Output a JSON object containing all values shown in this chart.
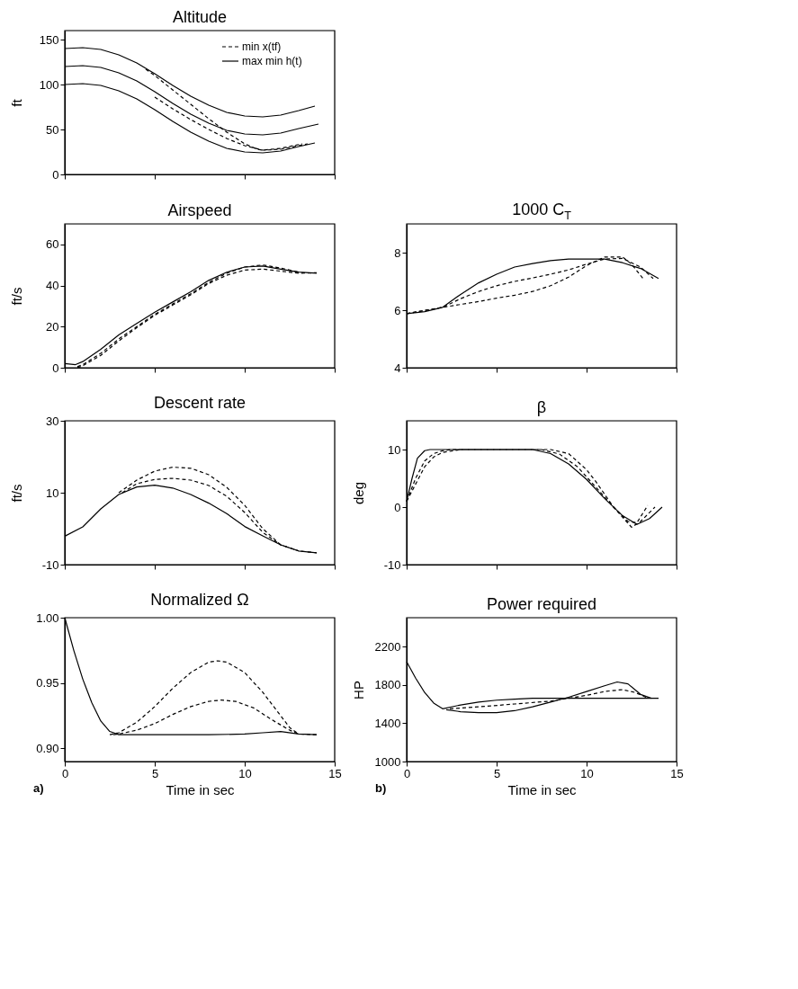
{
  "chart_data": [
    {
      "type": "line",
      "title": "Altitude",
      "ylabel": "ft",
      "xlim": [
        0,
        15
      ],
      "xticks": [
        0,
        5,
        10,
        15
      ],
      "ylim": [
        0,
        160
      ],
      "yticks": [
        0,
        50,
        100,
        150
      ],
      "tick_labels": "y",
      "legend": "top right",
      "series": [
        {
          "name": "min x(tf)",
          "color": "#000000",
          "line_style": "dashed",
          "x": [
            4.5,
            5,
            6,
            7,
            8,
            9,
            10,
            10.7,
            11,
            12,
            13.2
          ],
          "values": [
            117,
            110,
            94,
            78,
            62,
            47,
            34,
            28,
            27,
            29,
            34
          ]
        },
        {
          "color": "#000000",
          "line_style": "dashed",
          "x": [
            5,
            6,
            7,
            8,
            9,
            10,
            11,
            12,
            13,
            13.5
          ],
          "values": [
            86,
            73,
            61,
            50,
            40,
            32,
            27,
            28,
            32,
            34
          ]
        },
        {
          "name": "max min h(t)",
          "color": "#000000",
          "line_style": "solid",
          "x": [
            0,
            1,
            2,
            3,
            4,
            5,
            6,
            7,
            8,
            9,
            10,
            11,
            12,
            13,
            13.9
          ],
          "values": [
            140,
            141,
            139,
            133,
            124,
            112,
            99,
            87,
            77,
            69,
            65,
            64,
            66,
            71,
            76
          ]
        },
        {
          "color": "#000000",
          "line_style": "solid",
          "x": [
            0,
            1,
            2,
            3,
            4,
            5,
            6,
            7,
            8,
            9,
            10,
            11,
            12,
            13,
            14.1
          ],
          "values": [
            120,
            121,
            119,
            113,
            104,
            92,
            79,
            67,
            57,
            49,
            45,
            44,
            46,
            51,
            56
          ]
        },
        {
          "color": "#000000",
          "line_style": "solid",
          "x": [
            0,
            1,
            2,
            3,
            4,
            5,
            6,
            7,
            8,
            9,
            10,
            11,
            12,
            13,
            13.9
          ],
          "values": [
            100,
            101,
            99,
            93,
            84,
            72,
            59,
            47,
            37,
            29,
            25,
            24,
            26,
            31,
            35
          ]
        }
      ]
    },
    {
      "type": "line",
      "title": "Airspeed",
      "ylabel": "ft/s",
      "xlim": [
        0,
        15
      ],
      "xticks": [
        0,
        5,
        10,
        15
      ],
      "ylim": [
        0,
        70
      ],
      "yticks": [
        0,
        20,
        40,
        60
      ],
      "tick_labels": "y",
      "series": [
        {
          "color": "#000000",
          "line_style": "solid",
          "x": [
            0,
            0.6,
            1,
            2,
            3,
            4,
            5,
            6,
            7,
            8,
            9,
            10,
            11,
            12,
            13,
            14
          ],
          "values": [
            2,
            1.5,
            3,
            9,
            16,
            21.5,
            27,
            32,
            37,
            42.5,
            46.5,
            49,
            49.5,
            48,
            46.5,
            46
          ]
        },
        {
          "color": "#000000",
          "line_style": "dashed",
          "x": [
            0.7,
            1,
            2,
            3,
            4,
            5,
            6,
            7,
            8,
            9,
            10,
            11,
            12,
            13
          ],
          "values": [
            0.5,
            1.5,
            7,
            14,
            20,
            26,
            31,
            36,
            41.5,
            46,
            49,
            50,
            48.5,
            46.5
          ]
        },
        {
          "color": "#000000",
          "line_style": "dashed",
          "x": [
            0.7,
            1,
            2,
            3,
            4,
            5,
            6,
            7,
            8,
            9,
            10,
            11,
            12,
            13,
            14
          ],
          "values": [
            0,
            1,
            6,
            13,
            19.5,
            25.5,
            30.5,
            35.5,
            41,
            45,
            47.5,
            48,
            47,
            46,
            46.2
          ]
        }
      ]
    },
    {
      "type": "line",
      "title": "1000 C$_{T}$",
      "xlim": [
        0,
        15
      ],
      "xticks": [
        0,
        5,
        10,
        15
      ],
      "ylim": [
        4,
        9
      ],
      "yticks": [
        4,
        6,
        8
      ],
      "tick_labels": "y",
      "series": [
        {
          "color": "#000000",
          "line_style": "solid",
          "x": [
            0,
            1,
            2,
            3,
            4,
            5,
            6,
            7,
            8,
            9,
            10,
            11,
            12,
            13,
            14
          ],
          "values": [
            5.88,
            5.95,
            6.1,
            6.55,
            6.95,
            7.25,
            7.5,
            7.62,
            7.72,
            7.78,
            7.78,
            7.78,
            7.65,
            7.45,
            7.1
          ]
        },
        {
          "color": "#000000",
          "line_style": "dashed",
          "x": [
            0,
            2,
            3,
            4,
            5,
            6,
            7,
            8,
            9,
            10,
            11,
            12,
            13,
            13.7
          ],
          "values": [
            5.88,
            6.1,
            6.4,
            6.65,
            6.85,
            7.0,
            7.12,
            7.25,
            7.4,
            7.6,
            7.78,
            7.8,
            7.5,
            7.1
          ]
        },
        {
          "color": "#000000",
          "line_style": "dashed",
          "x": [
            0,
            2,
            3,
            4,
            5,
            6,
            7,
            8,
            9,
            10,
            11,
            12,
            12.5,
            13.2
          ],
          "values": [
            5.88,
            6.1,
            6.2,
            6.3,
            6.42,
            6.52,
            6.65,
            6.85,
            7.15,
            7.55,
            7.85,
            7.85,
            7.6,
            7.05
          ]
        }
      ]
    },
    {
      "type": "line",
      "title": "Descent rate",
      "ylabel": "ft/s",
      "xlim": [
        0,
        15
      ],
      "xticks": [
        0,
        5,
        10,
        15
      ],
      "ylim": [
        -10,
        30
      ],
      "yticks": [
        -10,
        10,
        30
      ],
      "tick_labels": "y",
      "series": [
        {
          "color": "#000000",
          "line_style": "solid",
          "x": [
            0,
            1,
            2,
            3,
            4,
            5,
            6,
            7,
            8,
            9,
            10,
            11,
            12,
            13,
            14
          ],
          "values": [
            -2.1,
            0.5,
            5.5,
            9.5,
            11.6,
            12.1,
            11.3,
            9.5,
            7.1,
            4.2,
            0.6,
            -2,
            -4.5,
            -6.2,
            -6.7
          ]
        },
        {
          "color": "#000000",
          "line_style": "dashed",
          "x": [
            3.2,
            4,
            5,
            6,
            7,
            8,
            9,
            10,
            11,
            12,
            13
          ],
          "values": [
            10,
            12.5,
            13.7,
            14,
            13.5,
            12,
            9,
            4.5,
            -1,
            -4.5,
            -6.2
          ]
        },
        {
          "color": "#000000",
          "line_style": "dashed",
          "x": [
            3,
            4,
            5,
            6,
            7,
            8,
            9,
            10,
            11,
            12,
            13,
            14
          ],
          "values": [
            10,
            13.5,
            16,
            17.1,
            16.8,
            15,
            11.5,
            6.5,
            0,
            -4.5,
            -6.2,
            -6.7
          ]
        }
      ]
    },
    {
      "type": "line",
      "title": "β",
      "ylabel": "deg",
      "xlim": [
        0,
        15
      ],
      "xticks": [
        0,
        5,
        10,
        15
      ],
      "ylim": [
        -10,
        15
      ],
      "yticks": [
        -10,
        0,
        10
      ],
      "tick_labels": "y",
      "series": [
        {
          "color": "#000000",
          "line_style": "solid",
          "x": [
            0,
            0.3,
            0.6,
            1,
            1.3,
            7,
            8,
            9,
            10,
            11,
            12,
            12.8,
            13.5,
            14.2
          ],
          "values": [
            1,
            5,
            8.5,
            9.8,
            10,
            10,
            9.3,
            7.5,
            4.8,
            1.5,
            -1.5,
            -3,
            -2,
            0
          ]
        },
        {
          "color": "#000000",
          "line_style": "dashed",
          "x": [
            0,
            0.5,
            1,
            1.5,
            2,
            2.5,
            7.5,
            8.5,
            9.5,
            10.5,
            11.5,
            12.3,
            12.8,
            13.4
          ],
          "values": [
            1,
            5,
            8,
            9.3,
            9.8,
            10,
            10,
            9.2,
            7,
            3.5,
            0,
            -2.5,
            -2.7,
            0.3
          ]
        },
        {
          "color": "#000000",
          "line_style": "dashed",
          "x": [
            0,
            0.5,
            1,
            1.5,
            2,
            3,
            8,
            9,
            10,
            10.5,
            11.5,
            12.5,
            13,
            13.8
          ],
          "values": [
            1,
            4,
            7,
            8.7,
            9.5,
            10,
            10,
            9.3,
            6.5,
            4.5,
            0,
            -3.5,
            -2.5,
            0
          ]
        }
      ]
    },
    {
      "type": "line",
      "title": "Normalized Ω",
      "xlabel": "Time in sec",
      "xlim": [
        0,
        15
      ],
      "xticks": [
        0,
        5,
        10,
        15
      ],
      "ylim": [
        0.89,
        1.0
      ],
      "yticks": [
        {
          "value": 0.9,
          "label": "0.90"
        },
        {
          "value": 0.95,
          "label": "0.95"
        },
        {
          "value": 1.0,
          "label": "1.00"
        }
      ],
      "annotations": [
        "a)"
      ],
      "series": [
        {
          "color": "#000000",
          "line_style": "solid",
          "x": [
            0,
            0.5,
            1,
            1.5,
            2,
            2.5,
            3,
            8,
            10,
            11,
            12,
            13,
            14
          ],
          "values": [
            1.0,
            0.975,
            0.953,
            0.935,
            0.921,
            0.913,
            0.9105,
            0.9105,
            0.911,
            0.912,
            0.913,
            0.911,
            0.9105
          ]
        },
        {
          "color": "#000000",
          "line_style": "dashed",
          "x": [
            2.5,
            3,
            4,
            5,
            6,
            7,
            8,
            8.5,
            9,
            10,
            11,
            12,
            12.5,
            13
          ],
          "values": [
            0.9105,
            0.912,
            0.92,
            0.932,
            0.946,
            0.958,
            0.966,
            0.967,
            0.966,
            0.958,
            0.943,
            0.925,
            0.916,
            0.911
          ]
        },
        {
          "color": "#000000",
          "line_style": "dashed",
          "x": [
            2.7,
            3,
            4,
            5,
            6,
            7,
            8,
            8.7,
            9.5,
            10.5,
            11.5,
            12.5,
            13,
            14
          ],
          "values": [
            0.9105,
            0.911,
            0.914,
            0.919,
            0.926,
            0.932,
            0.936,
            0.937,
            0.936,
            0.931,
            0.922,
            0.914,
            0.911,
            0.9105
          ]
        }
      ]
    },
    {
      "type": "line",
      "title": "Power required",
      "xlabel": "Time in sec",
      "ylabel": "HP",
      "xlim": [
        0,
        15
      ],
      "xticks": [
        0,
        5,
        10,
        15
      ],
      "ylim": [
        1000,
        2500
      ],
      "yticks": [
        1000,
        1400,
        1800,
        2200
      ],
      "annotations": [
        "b)"
      ],
      "series": [
        {
          "color": "#000000",
          "line_style": "solid",
          "x": [
            0,
            0.5,
            1,
            1.5,
            2,
            3,
            4,
            5,
            6,
            7,
            8,
            9,
            10,
            12,
            14
          ],
          "values": [
            2040,
            1870,
            1720,
            1610,
            1550,
            1590,
            1620,
            1640,
            1650,
            1660,
            1660,
            1660,
            1660,
            1660,
            1660
          ]
        },
        {
          "color": "#000000",
          "line_style": "solid",
          "x": [
            2.2,
            3,
            4,
            5,
            6,
            7,
            8,
            9,
            10,
            11,
            11.7,
            12.3,
            13,
            13.6
          ],
          "values": [
            1540,
            1520,
            1510,
            1510,
            1530,
            1570,
            1620,
            1670,
            1730,
            1790,
            1830,
            1810,
            1700,
            1660
          ]
        },
        {
          "color": "#000000",
          "line_style": "dashed",
          "x": [
            2.4,
            4,
            6,
            8,
            9,
            10,
            11,
            12,
            12.7,
            13.3
          ],
          "values": [
            1550,
            1570,
            1600,
            1630,
            1660,
            1690,
            1730,
            1750,
            1720,
            1670
          ]
        }
      ]
    }
  ]
}
